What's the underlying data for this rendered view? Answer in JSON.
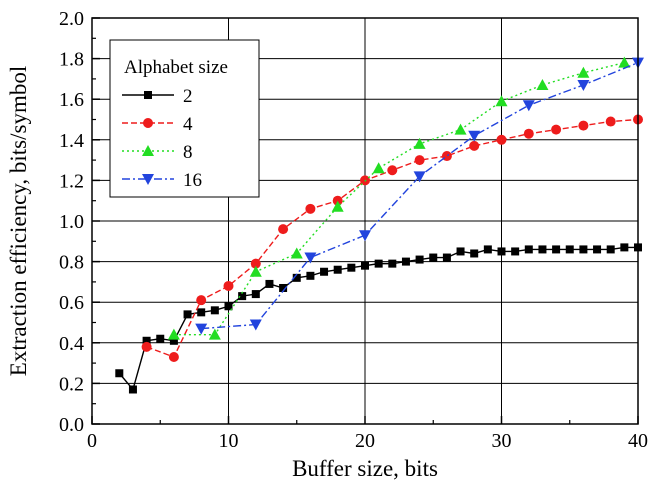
{
  "chart_data": {
    "type": "line",
    "title": "",
    "xlabel": "Buffer size, bits",
    "ylabel": "Extraction efficiency, bits/symbol",
    "xlim": [
      0,
      40
    ],
    "ylim": [
      0.0,
      2.0
    ],
    "x_ticks": [
      "0",
      "10",
      "20",
      "30",
      "40"
    ],
    "y_ticks": [
      "0.0",
      "0.2",
      "0.4",
      "0.6",
      "0.8",
      "1.0",
      "1.2",
      "1.4",
      "1.6",
      "1.8",
      "2.0"
    ],
    "grid": true,
    "legend": {
      "title": "Alphabet size",
      "placement": "top-left"
    },
    "series": [
      {
        "name": "2",
        "color": "#000000",
        "marker": "square",
        "line_style": "solid",
        "x": [
          2,
          3,
          4,
          5,
          6,
          7,
          8,
          9,
          10,
          11,
          12,
          13,
          14,
          15,
          16,
          17,
          18,
          19,
          20,
          21,
          22,
          23,
          24,
          25,
          26,
          27,
          28,
          29,
          30,
          31,
          32,
          33,
          34,
          35,
          36,
          37,
          38,
          39,
          40
        ],
        "y": [
          0.25,
          0.17,
          0.41,
          0.42,
          0.41,
          0.54,
          0.55,
          0.56,
          0.58,
          0.63,
          0.64,
          0.69,
          0.67,
          0.72,
          0.73,
          0.75,
          0.76,
          0.77,
          0.78,
          0.79,
          0.79,
          0.8,
          0.81,
          0.82,
          0.82,
          0.85,
          0.84,
          0.86,
          0.85,
          0.85,
          0.86,
          0.86,
          0.86,
          0.86,
          0.86,
          0.86,
          0.86,
          0.87,
          0.87
        ]
      },
      {
        "name": "4",
        "color": "#ee1c1c",
        "marker": "circle",
        "line_style": "dashed",
        "x": [
          4,
          6,
          8,
          10,
          12,
          14,
          16,
          18,
          20,
          22,
          24,
          26,
          28,
          30,
          32,
          34,
          36,
          38,
          40
        ],
        "y": [
          0.38,
          0.33,
          0.61,
          0.68,
          0.79,
          0.96,
          1.06,
          1.1,
          1.2,
          1.25,
          1.3,
          1.32,
          1.37,
          1.4,
          1.43,
          1.45,
          1.47,
          1.49,
          1.5
        ]
      },
      {
        "name": "8",
        "color": "#22dd22",
        "marker": "triangle-up",
        "line_style": "dotted",
        "x": [
          6,
          9,
          12,
          15,
          18,
          21,
          24,
          27,
          30,
          33,
          36,
          39
        ],
        "y": [
          0.44,
          0.44,
          0.75,
          0.84,
          1.07,
          1.26,
          1.38,
          1.45,
          1.59,
          1.67,
          1.73,
          1.78
        ]
      },
      {
        "name": "16",
        "color": "#2244dd",
        "marker": "triangle-down",
        "line_style": "dash-dot",
        "x": [
          8,
          12,
          16,
          20,
          24,
          28,
          32,
          36,
          40
        ],
        "y": [
          0.47,
          0.49,
          0.82,
          0.93,
          1.22,
          1.42,
          1.57,
          1.67,
          1.78
        ]
      }
    ]
  }
}
